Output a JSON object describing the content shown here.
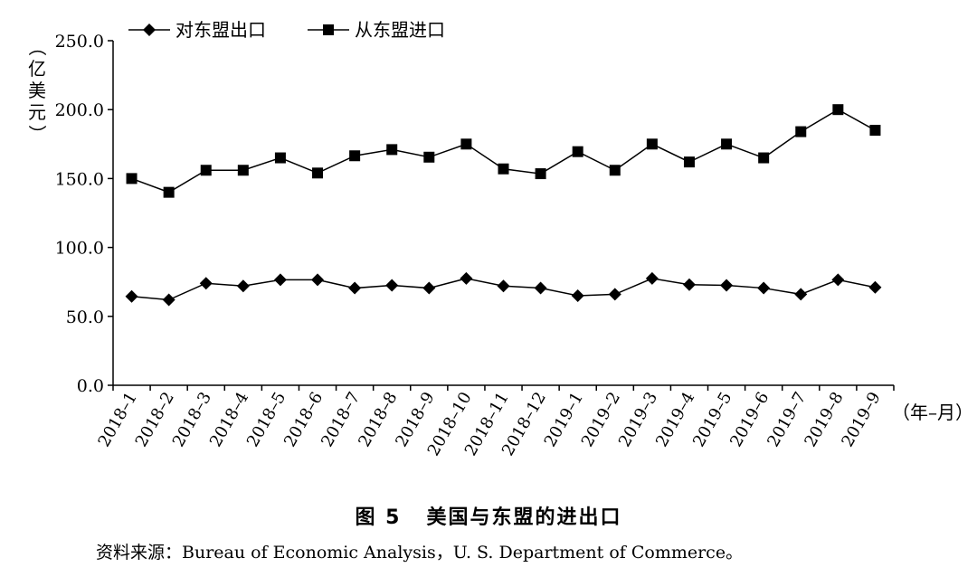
{
  "chart_data": {
    "type": "line",
    "categories": [
      "2018–1",
      "2018–2",
      "2018–3",
      "2018–4",
      "2018–5",
      "2018–6",
      "2018–7",
      "2018–8",
      "2018–9",
      "2018–10",
      "2018–11",
      "2018–12",
      "2019–1",
      "2019–2",
      "2019–3",
      "2019–4",
      "2019–5",
      "2019–6",
      "2019–7",
      "2019–8",
      "2019–9"
    ],
    "series": [
      {
        "name": "对东盟出口",
        "marker": "diamond",
        "values": [
          64.5,
          62.0,
          74.0,
          72.0,
          76.5,
          76.5,
          70.5,
          72.5,
          70.5,
          77.5,
          72.0,
          70.5,
          65.0,
          66.0,
          77.5,
          73.0,
          72.5,
          70.5,
          66.0,
          76.5,
          71.0
        ]
      },
      {
        "name": "从东盟进口",
        "marker": "square",
        "values": [
          150.0,
          140.0,
          156.0,
          156.0,
          165.0,
          154.0,
          166.5,
          171.0,
          165.5,
          175.0,
          157.0,
          153.5,
          169.5,
          156.0,
          175.0,
          162.0,
          175.0,
          165.0,
          184.0,
          200.0,
          185.0
        ]
      }
    ],
    "yticks": [
      "0.0",
      "50.0",
      "100.0",
      "150.0",
      "200.0",
      "250.0"
    ],
    "ylim": [
      0,
      250
    ],
    "ylabel": "（亿美元）",
    "xlabel": "（年–月）",
    "grid": false,
    "legend_position": "top"
  },
  "ylabel_chars": [
    "（",
    "亿",
    "美",
    "元",
    "）"
  ],
  "caption": {
    "number": "图 5",
    "title": "美国与东盟的进出口"
  },
  "source": "资料来源：Bureau of Economic Analysis，U. S. Department of Commerce。"
}
